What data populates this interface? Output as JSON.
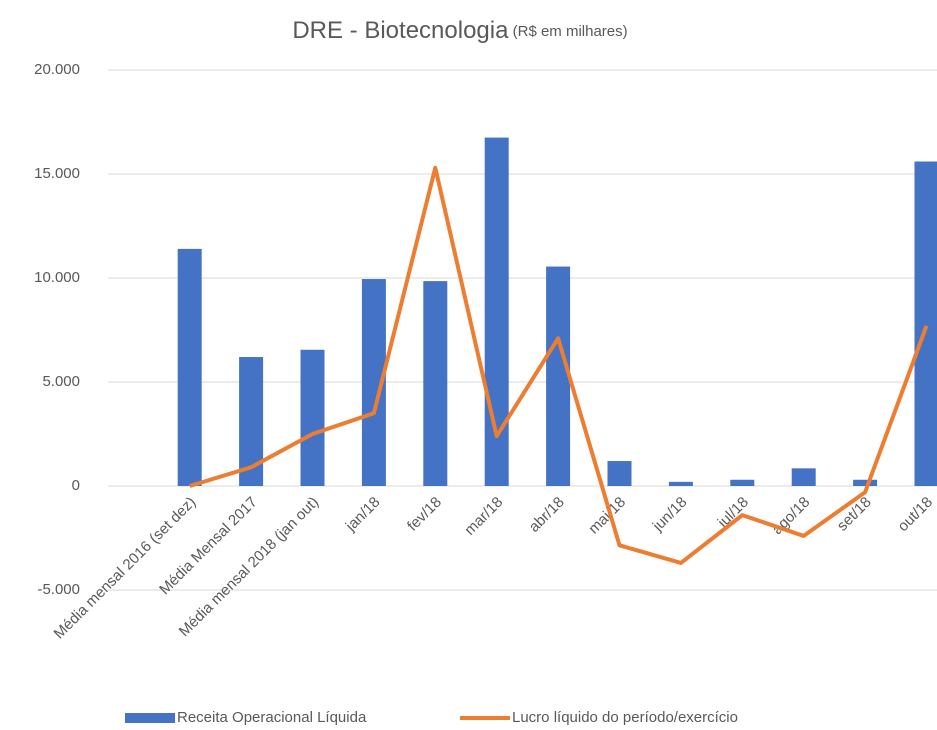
{
  "chart_data": {
    "type": "bar_line",
    "title": "DRE - Biotecnologia",
    "subtitle": "(R$ em milhares)",
    "categories": [
      "Média mensal 2016 (set dez)",
      "Média Mensal 2017",
      "Média mensal 2018 (jan out)",
      "jan/18",
      "fev/18",
      "mar/18",
      "abr/18",
      "mai/18",
      "jun/18",
      "jul/18",
      "ago/18",
      "set/18",
      "out/18"
    ],
    "series": [
      {
        "name": "Receita Operacional Líquida",
        "type": "bar",
        "color": "#4472c4",
        "values": [
          11400,
          6200,
          6550,
          9950,
          9850,
          16750,
          10550,
          1200,
          200,
          300,
          850,
          300,
          15600
        ]
      },
      {
        "name": "Lucro líquido do período/exercício",
        "type": "line",
        "color": "#ed7d31",
        "values": [
          0,
          900,
          2500,
          3500,
          15300,
          2400,
          7100,
          -2850,
          -3700,
          -1400,
          -2400,
          -300,
          7700
        ]
      }
    ],
    "ylim": [
      -5000,
      20000
    ],
    "yticks": [
      {
        "value": -5000,
        "label": "-5.000"
      },
      0,
      {
        "value": 5000,
        "label": "5.000"
      },
      {
        "value": 10000,
        "label": "10.000"
      },
      {
        "value": 15000,
        "label": "15.000"
      },
      {
        "value": 20000,
        "label": "20.000"
      }
    ],
    "grid": true,
    "legend": "bottom"
  }
}
